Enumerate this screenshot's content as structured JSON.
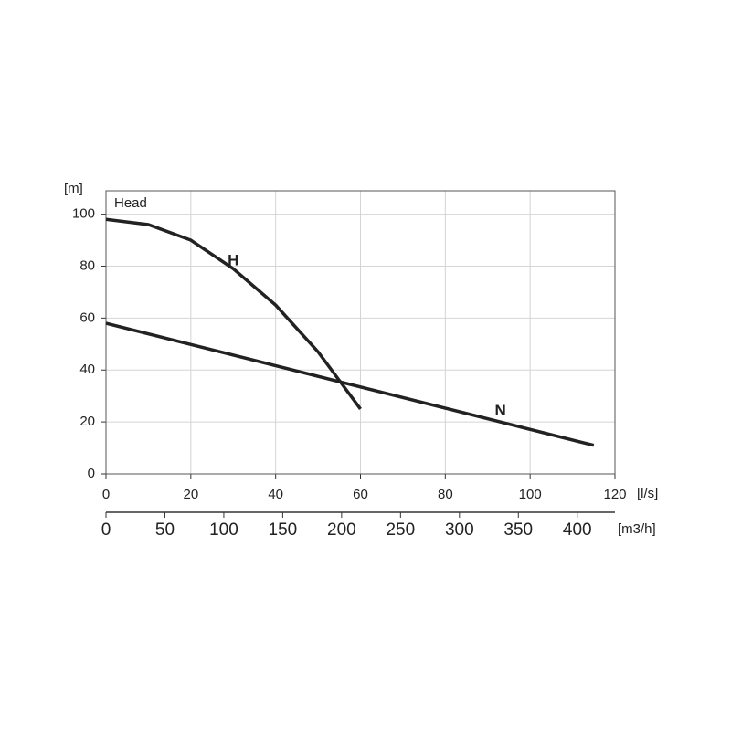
{
  "chart_data": {
    "type": "line",
    "title": "Head",
    "y_label": "[m]",
    "x_label": "[l/s]",
    "x2_label": "[m3/h]",
    "series": [
      {
        "name": "H",
        "color": "#222222",
        "x": [
          0,
          10,
          20,
          30,
          40,
          50,
          55,
          60
        ],
        "values": [
          98,
          96,
          90,
          79,
          65,
          47,
          36,
          25
        ]
      },
      {
        "name": "N",
        "color": "#222222",
        "x": [
          0,
          115
        ],
        "values": [
          58,
          11
        ]
      }
    ],
    "xlim": [
      0,
      120
    ],
    "xticks": [
      0,
      20,
      40,
      60,
      80,
      100,
      120
    ],
    "ylim": [
      0,
      109
    ],
    "yticks": [
      0,
      20,
      40,
      60,
      80,
      100
    ],
    "x2lim": [
      0,
      432
    ],
    "x2ticks": [
      0,
      50,
      100,
      150,
      200,
      250,
      300,
      350,
      400
    ],
    "grid": true
  }
}
